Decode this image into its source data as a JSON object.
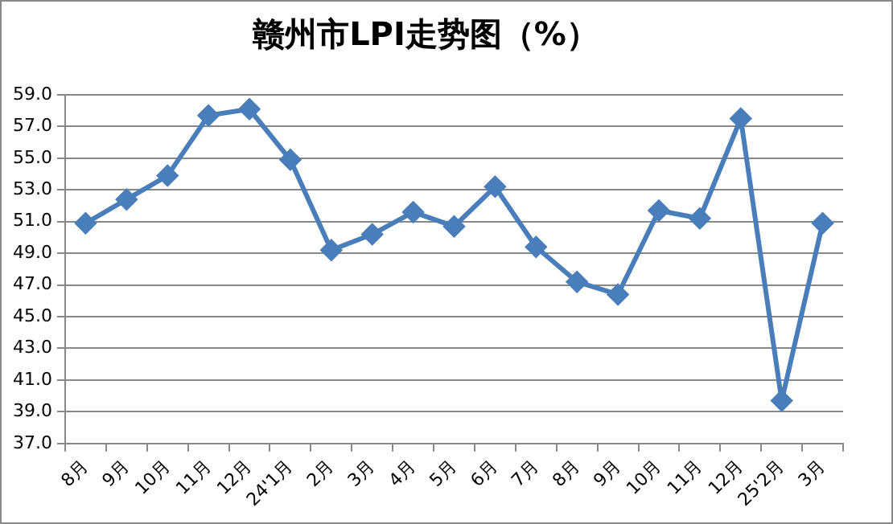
{
  "chart_data": {
    "type": "line",
    "title": "赣州市LPI走势图（%）",
    "categories": [
      "8月",
      "9月",
      "10月",
      "11月",
      "12月",
      "24'1月",
      "2月",
      "3月",
      "4月",
      "5月",
      "6月",
      "7月",
      "8月",
      "9月",
      "10月",
      "11月",
      "12月",
      "25'2月",
      "3月"
    ],
    "series": [
      {
        "color": "#4a7ebb",
        "values": [
          50.9,
          52.4,
          53.9,
          57.7,
          58.1,
          54.9,
          49.2,
          50.2,
          51.6,
          50.7,
          53.2,
          49.4,
          47.2,
          46.4,
          51.7,
          51.2,
          57.5,
          39.7,
          50.9
        ]
      }
    ],
    "ylim": [
      37,
      59
    ],
    "yticks": [
      {
        "value": 37,
        "label": "37.0"
      },
      {
        "value": 39,
        "label": "39.0"
      },
      {
        "value": 41,
        "label": "41.0"
      },
      {
        "value": 43,
        "label": "43.0"
      },
      {
        "value": 45,
        "label": "45.0"
      },
      {
        "value": 47,
        "label": "47.0"
      },
      {
        "value": 49,
        "label": "49.0"
      },
      {
        "value": 51,
        "label": "51.0"
      },
      {
        "value": 53,
        "label": "53.0"
      },
      {
        "value": 55,
        "label": "55.0"
      },
      {
        "value": 57,
        "label": "57.0"
      },
      {
        "value": 59,
        "label": "59.0"
      }
    ],
    "grid": "y",
    "marker": "diamond",
    "line_style": "solid",
    "legend": false
  }
}
